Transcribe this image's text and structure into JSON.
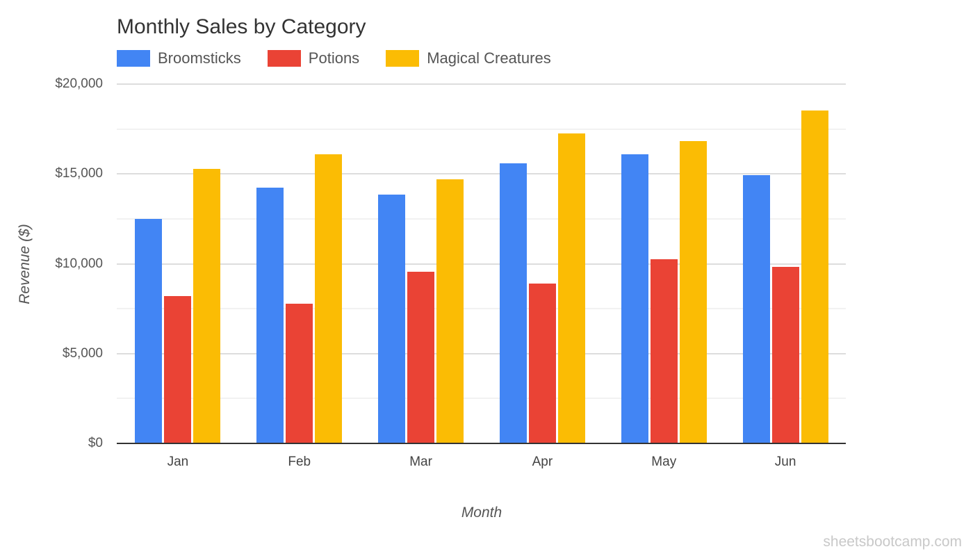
{
  "chart_data": {
    "type": "bar",
    "title": "Monthly Sales by Category",
    "xlabel": "Month",
    "ylabel": "Revenue ($)",
    "categories": [
      "Jan",
      "Feb",
      "Mar",
      "Apr",
      "May",
      "Jun"
    ],
    "series": [
      {
        "name": "Broomsticks",
        "color": "#4285f4",
        "values": [
          12450,
          14200,
          13800,
          15550,
          16050,
          14900
        ]
      },
      {
        "name": "Potions",
        "color": "#ea4335",
        "values": [
          8150,
          7750,
          9500,
          8850,
          10200,
          9800
        ]
      },
      {
        "name": "Magical Creatures",
        "color": "#fbbc04",
        "values": [
          15250,
          16050,
          14650,
          17200,
          16800,
          18500
        ]
      }
    ],
    "ylim": [
      0,
      20000
    ],
    "yticks": [
      0,
      5000,
      10000,
      15000,
      20000
    ],
    "ytick_labels": [
      "$0",
      "$5,000",
      "$10,000",
      "$15,000",
      "$20,000"
    ],
    "grid": true,
    "minor_grid": true,
    "legend_position": "top-left"
  },
  "watermark": "sheetsbootcamp.com"
}
